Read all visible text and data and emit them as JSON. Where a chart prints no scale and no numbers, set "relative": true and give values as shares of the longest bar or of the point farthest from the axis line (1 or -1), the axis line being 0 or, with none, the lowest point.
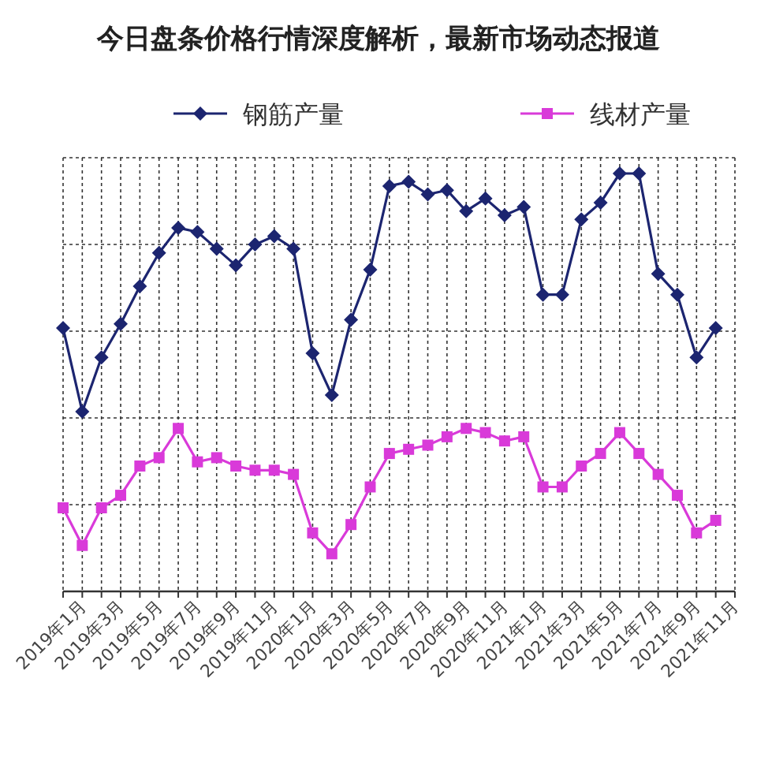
{
  "chart_data": {
    "type": "line",
    "title": "今日盘条价格行情深度解析，最新市场动态报道",
    "relative": true,
    "grid": true,
    "legend": "top",
    "categories": [
      null,
      "2019年1月",
      null,
      "2019年3月",
      null,
      "2019年5月",
      null,
      "2019年7月",
      null,
      "2019年9月",
      null,
      "2019年11月",
      null,
      "2020年1月",
      null,
      "2020年3月",
      null,
      "2020年5月",
      null,
      "2020年7月",
      null,
      "2020年9月",
      null,
      "2020年11月",
      null,
      "2021年1月",
      null,
      "2021年3月",
      null,
      "2021年5月",
      null,
      "2021年7月",
      null,
      "2021年9月",
      null,
      "2021年11月"
    ],
    "series": [
      {
        "name": "钢筋产量",
        "color": "#1c2570",
        "marker": "diamond",
        "values": [
          0.63,
          0.43,
          0.56,
          0.64,
          0.73,
          0.81,
          0.87,
          0.86,
          0.82,
          0.78,
          0.83,
          0.85,
          0.82,
          0.57,
          0.47,
          0.65,
          0.77,
          0.97,
          0.98,
          0.95,
          0.96,
          0.91,
          0.94,
          0.9,
          0.92,
          0.71,
          0.71,
          0.89,
          0.93,
          1.0,
          1.0,
          0.76,
          0.71,
          0.56,
          0.63,
          null
        ]
      },
      {
        "name": "线材产量",
        "color": "#d93ad9",
        "marker": "square",
        "values": [
          0.2,
          0.11,
          0.2,
          0.23,
          0.3,
          0.32,
          0.39,
          0.31,
          0.32,
          0.3,
          0.29,
          0.29,
          0.28,
          0.14,
          0.09,
          0.16,
          0.25,
          0.33,
          0.34,
          0.35,
          0.37,
          0.39,
          0.38,
          0.36,
          0.37,
          0.25,
          0.25,
          0.3,
          0.33,
          0.38,
          0.33,
          0.28,
          0.23,
          0.14,
          0.17,
          null
        ]
      }
    ]
  }
}
